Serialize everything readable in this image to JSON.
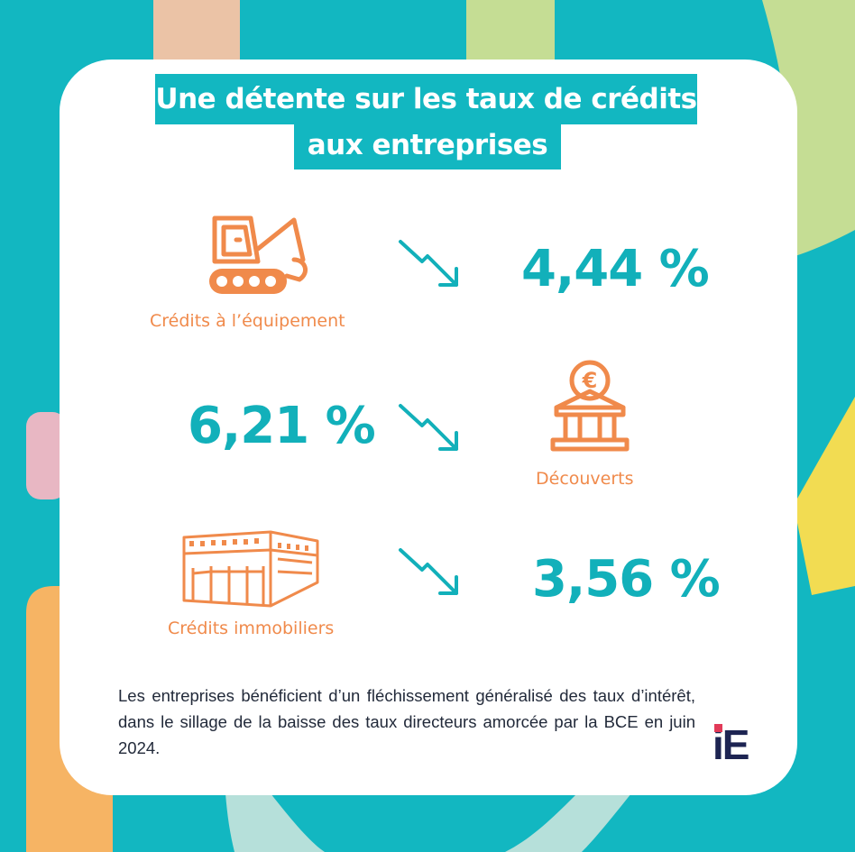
{
  "title": {
    "line1": "Une détente sur les taux de crédits",
    "line2": "aux entreprises"
  },
  "items": [
    {
      "label": "Crédits à l’équipement",
      "value": "4,44 %",
      "icon": "excavator-icon",
      "trend": "down"
    },
    {
      "label": "Découverts",
      "value": "6,21 %",
      "icon": "bank-euro-icon",
      "trend": "down"
    },
    {
      "label": "Crédits immobiliers",
      "value": "3,56 %",
      "icon": "building-icon",
      "trend": "down"
    }
  ],
  "description": "Les entreprises bénéficient d’un fléchissement généralisé des taux d’intérêt, dans le sillage de la baisse des taux directeurs amorcée par la BCE en juin 2024.",
  "logo": {
    "text": "iE"
  },
  "colors": {
    "background": "#12b7c1",
    "accent_orange": "#f08a4b",
    "value_teal": "#12b0ba",
    "deco_peach": "#ebc3a6",
    "deco_green": "#c5dd94",
    "deco_yellow": "#f2dc52",
    "deco_pink": "#e8b7c3",
    "deco_orange": "#f6b464",
    "deco_mint": "#b6e0da",
    "logo_navy": "#1d2452",
    "logo_red": "#e23a58"
  }
}
